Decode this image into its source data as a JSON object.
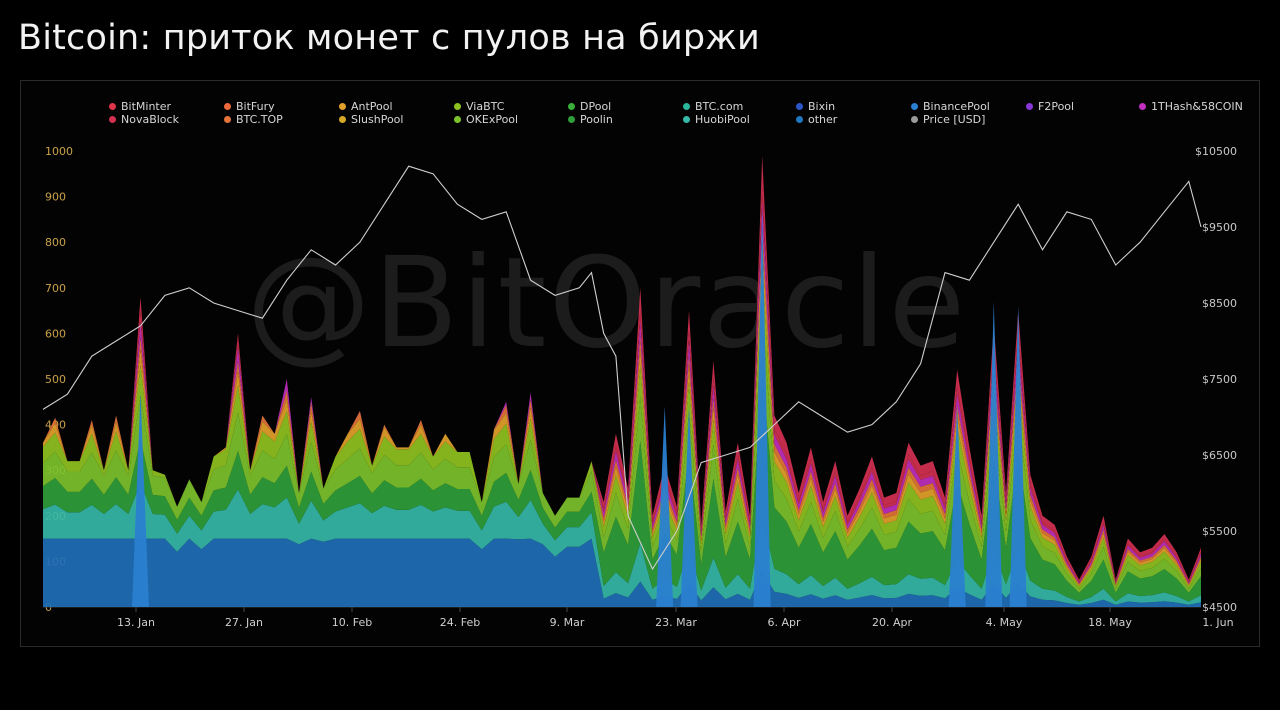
{
  "title": "Bitcoin: приток монет с пулов на биржи",
  "watermark": "@BitOracle",
  "chart_data": {
    "type": "area",
    "stacked": true,
    "x_ticks": [
      "13. Jan",
      "27. Jan",
      "10. Feb",
      "24. Feb",
      "9. Mar",
      "23. Mar",
      "6. Apr",
      "20. Apr",
      "4. May",
      "18. May",
      "1. Jun"
    ],
    "y_left": {
      "ticks": [
        0,
        100,
        200,
        300,
        400,
        500,
        600,
        700,
        800,
        900,
        1000
      ],
      "range": [
        0,
        1000
      ],
      "color": "#c9a24a"
    },
    "y_right": {
      "ticks": [
        "$4500",
        "$5500",
        "$6500",
        "$7500",
        "$8500",
        "$9500",
        "$10500"
      ],
      "range": [
        4500,
        10500
      ],
      "color": "#c8c8c8"
    },
    "legend": [
      {
        "name": "BitMinter",
        "color": "#e0344b"
      },
      {
        "name": "BitFury",
        "color": "#ec6a3a"
      },
      {
        "name": "AntPool",
        "color": "#e2a12a"
      },
      {
        "name": "ViaBTC",
        "color": "#8fc21f"
      },
      {
        "name": "DPool",
        "color": "#3aae3a"
      },
      {
        "name": "BTC.com",
        "color": "#2ab79c"
      },
      {
        "name": "Bixin",
        "color": "#2a56c8"
      },
      {
        "name": "BinancePool",
        "color": "#2a7fd0"
      },
      {
        "name": "F2Pool",
        "color": "#8a35d6"
      },
      {
        "name": "1THash&58COIN",
        "color": "#c02fc0"
      },
      {
        "name": "NovaBlock",
        "color": "#d43050"
      },
      {
        "name": "BTC.TOP",
        "color": "#e5743a"
      },
      {
        "name": "SlushPool",
        "color": "#d6a825"
      },
      {
        "name": "OKExPool",
        "color": "#7cc22c"
      },
      {
        "name": "Poolin",
        "color": "#2f9f3a"
      },
      {
        "name": "HuobiPool",
        "color": "#36b9a8"
      },
      {
        "name": "other",
        "color": "#1f78c0"
      },
      {
        "name": "Price [USD]",
        "color": "#9a9a9a"
      }
    ],
    "series_total": [
      {
        "x": 0,
        "y": 360
      },
      {
        "x": 1,
        "y": 415
      },
      {
        "x": 2,
        "y": 320
      },
      {
        "x": 3,
        "y": 320
      },
      {
        "x": 4,
        "y": 410
      },
      {
        "x": 5,
        "y": 300
      },
      {
        "x": 6,
        "y": 420
      },
      {
        "x": 7,
        "y": 300
      },
      {
        "x": 8,
        "y": 680
      },
      {
        "x": 9,
        "y": 300
      },
      {
        "x": 10,
        "y": 290
      },
      {
        "x": 11,
        "y": 220
      },
      {
        "x": 12,
        "y": 280
      },
      {
        "x": 13,
        "y": 230
      },
      {
        "x": 14,
        "y": 330
      },
      {
        "x": 15,
        "y": 350
      },
      {
        "x": 16,
        "y": 600
      },
      {
        "x": 17,
        "y": 300
      },
      {
        "x": 18,
        "y": 420
      },
      {
        "x": 19,
        "y": 380
      },
      {
        "x": 20,
        "y": 500
      },
      {
        "x": 21,
        "y": 250
      },
      {
        "x": 22,
        "y": 460
      },
      {
        "x": 23,
        "y": 260
      },
      {
        "x": 24,
        "y": 330
      },
      {
        "x": 25,
        "y": 380
      },
      {
        "x": 26,
        "y": 430
      },
      {
        "x": 27,
        "y": 310
      },
      {
        "x": 28,
        "y": 400
      },
      {
        "x": 29,
        "y": 350
      },
      {
        "x": 30,
        "y": 350
      },
      {
        "x": 31,
        "y": 410
      },
      {
        "x": 32,
        "y": 330
      },
      {
        "x": 33,
        "y": 380
      },
      {
        "x": 34,
        "y": 340
      },
      {
        "x": 35,
        "y": 340
      },
      {
        "x": 36,
        "y": 230
      },
      {
        "x": 37,
        "y": 390
      },
      {
        "x": 38,
        "y": 450
      },
      {
        "x": 39,
        "y": 270
      },
      {
        "x": 40,
        "y": 470
      },
      {
        "x": 41,
        "y": 250
      },
      {
        "x": 42,
        "y": 200
      },
      {
        "x": 43,
        "y": 240
      },
      {
        "x": 44,
        "y": 240
      },
      {
        "x": 45,
        "y": 320
      },
      {
        "x": 46,
        "y": 230
      },
      {
        "x": 47,
        "y": 380
      },
      {
        "x": 48,
        "y": 260
      },
      {
        "x": 49,
        "y": 700
      },
      {
        "x": 50,
        "y": 200
      },
      {
        "x": 51,
        "y": 310
      },
      {
        "x": 52,
        "y": 220
      },
      {
        "x": 53,
        "y": 650
      },
      {
        "x": 54,
        "y": 180
      },
      {
        "x": 55,
        "y": 540
      },
      {
        "x": 56,
        "y": 210
      },
      {
        "x": 57,
        "y": 360
      },
      {
        "x": 58,
        "y": 200
      },
      {
        "x": 59,
        "y": 990
      },
      {
        "x": 60,
        "y": 420
      },
      {
        "x": 61,
        "y": 360
      },
      {
        "x": 62,
        "y": 250
      },
      {
        "x": 63,
        "y": 350
      },
      {
        "x": 64,
        "y": 230
      },
      {
        "x": 65,
        "y": 320
      },
      {
        "x": 66,
        "y": 200
      },
      {
        "x": 67,
        "y": 260
      },
      {
        "x": 68,
        "y": 330
      },
      {
        "x": 69,
        "y": 240
      },
      {
        "x": 70,
        "y": 250
      },
      {
        "x": 71,
        "y": 360
      },
      {
        "x": 72,
        "y": 310
      },
      {
        "x": 73,
        "y": 320
      },
      {
        "x": 74,
        "y": 240
      },
      {
        "x": 75,
        "y": 520
      },
      {
        "x": 76,
        "y": 350
      },
      {
        "x": 77,
        "y": 200
      },
      {
        "x": 78,
        "y": 620
      },
      {
        "x": 79,
        "y": 250
      },
      {
        "x": 80,
        "y": 650
      },
      {
        "x": 81,
        "y": 290
      },
      {
        "x": 82,
        "y": 200
      },
      {
        "x": 83,
        "y": 180
      },
      {
        "x": 84,
        "y": 110
      },
      {
        "x": 85,
        "y": 60
      },
      {
        "x": 86,
        "y": 110
      },
      {
        "x": 87,
        "y": 200
      },
      {
        "x": 88,
        "y": 60
      },
      {
        "x": 89,
        "y": 150
      },
      {
        "x": 90,
        "y": 120
      },
      {
        "x": 91,
        "y": 130
      },
      {
        "x": 92,
        "y": 160
      },
      {
        "x": 93,
        "y": 120
      },
      {
        "x": 94,
        "y": 60
      },
      {
        "x": 95,
        "y": 130
      }
    ],
    "price_usd": [
      {
        "x": 0,
        "y": 7100
      },
      {
        "x": 2,
        "y": 7300
      },
      {
        "x": 4,
        "y": 7800
      },
      {
        "x": 6,
        "y": 8000
      },
      {
        "x": 8,
        "y": 8200
      },
      {
        "x": 10,
        "y": 8600
      },
      {
        "x": 12,
        "y": 8700
      },
      {
        "x": 14,
        "y": 8500
      },
      {
        "x": 16,
        "y": 8400
      },
      {
        "x": 18,
        "y": 8300
      },
      {
        "x": 20,
        "y": 8800
      },
      {
        "x": 22,
        "y": 9200
      },
      {
        "x": 24,
        "y": 9000
      },
      {
        "x": 26,
        "y": 9300
      },
      {
        "x": 28,
        "y": 9800
      },
      {
        "x": 30,
        "y": 10300
      },
      {
        "x": 32,
        "y": 10200
      },
      {
        "x": 34,
        "y": 9800
      },
      {
        "x": 36,
        "y": 9600
      },
      {
        "x": 38,
        "y": 9700
      },
      {
        "x": 40,
        "y": 8800
      },
      {
        "x": 42,
        "y": 8600
      },
      {
        "x": 44,
        "y": 8700
      },
      {
        "x": 45,
        "y": 8900
      },
      {
        "x": 46,
        "y": 8100
      },
      {
        "x": 47,
        "y": 7800
      },
      {
        "x": 48,
        "y": 5700
      },
      {
        "x": 50,
        "y": 5000
      },
      {
        "x": 52,
        "y": 5500
      },
      {
        "x": 54,
        "y": 6400
      },
      {
        "x": 56,
        "y": 6500
      },
      {
        "x": 58,
        "y": 6600
      },
      {
        "x": 60,
        "y": 6900
      },
      {
        "x": 62,
        "y": 7200
      },
      {
        "x": 64,
        "y": 7000
      },
      {
        "x": 66,
        "y": 6800
      },
      {
        "x": 68,
        "y": 6900
      },
      {
        "x": 70,
        "y": 7200
      },
      {
        "x": 72,
        "y": 7700
      },
      {
        "x": 74,
        "y": 8900
      },
      {
        "x": 76,
        "y": 8800
      },
      {
        "x": 78,
        "y": 9300
      },
      {
        "x": 80,
        "y": 9800
      },
      {
        "x": 82,
        "y": 9200
      },
      {
        "x": 84,
        "y": 9700
      },
      {
        "x": 86,
        "y": 9600
      },
      {
        "x": 88,
        "y": 9000
      },
      {
        "x": 90,
        "y": 9300
      },
      {
        "x": 92,
        "y": 9700
      },
      {
        "x": 94,
        "y": 10100
      },
      {
        "x": 95,
        "y": 9500
      }
    ],
    "grid": false,
    "legend_position": "top"
  }
}
